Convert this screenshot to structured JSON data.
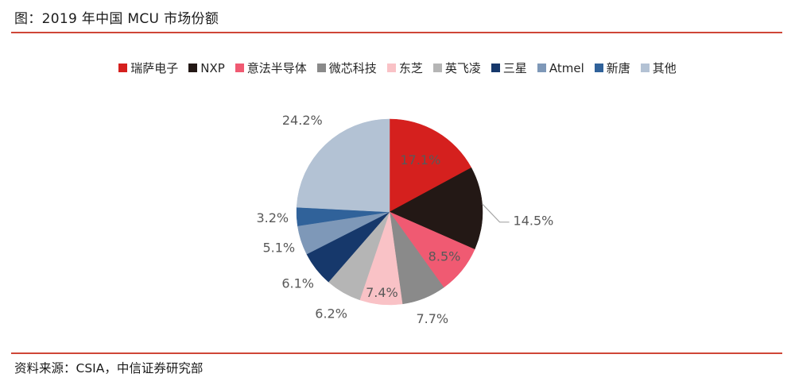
{
  "page": {
    "title": "图：2019 年中国 MCU 市场份额",
    "source": "资料来源：CSIA，中信证券研究部",
    "accent_line_color": "#CF4637",
    "background_color": "#FFFFFF"
  },
  "chart_data": {
    "type": "pie",
    "title": "2019 年中国 MCU 市场份额",
    "unit": "%",
    "start_angle_deg": 0,
    "direction": "clockwise",
    "legend_position": "top",
    "label_color": "#595959",
    "leader_line_color": "#A6A6A6",
    "slices": [
      {
        "name": "瑞萨电子",
        "value": 17.1,
        "label": "17.1%",
        "color": "#D5201E",
        "label_placement": "inside",
        "label_r": 0.65
      },
      {
        "name": "NXP",
        "value": 14.5,
        "label": "14.5%",
        "color": "#231815",
        "label_placement": "callout",
        "label_r": 1.0
      },
      {
        "name": "意法半导体",
        "value": 8.5,
        "label": "8.5%",
        "color": "#F05A72",
        "label_placement": "inside",
        "label_r": 0.76
      },
      {
        "name": "微芯科技",
        "value": 7.7,
        "label": "7.7%",
        "color": "#8A8A8A",
        "label_placement": "outside",
        "label_r": 1.24
      },
      {
        "name": "东芝",
        "value": 7.4,
        "label": "7.4%",
        "color": "#F9C2C6",
        "label_placement": "inside",
        "label_r": 0.87
      },
      {
        "name": "英飞凌",
        "value": 6.2,
        "label": "6.2%",
        "color": "#B5B5B5",
        "label_placement": "outside",
        "label_r": 1.26
      },
      {
        "name": "三星",
        "value": 6.1,
        "label": "6.1%",
        "color": "#16386B",
        "label_placement": "outside",
        "label_r": 1.25
      },
      {
        "name": "Atmel",
        "value": 5.1,
        "label": "5.1%",
        "color": "#7E98B8",
        "label_placement": "outside",
        "label_r": 1.25
      },
      {
        "name": "新唐",
        "value": 3.2,
        "label": "3.2%",
        "color": "#30629A",
        "label_placement": "outside",
        "label_r": 1.26
      },
      {
        "name": "其他",
        "value": 24.2,
        "label": "24.2%",
        "color": "#B3C2D4",
        "label_placement": "outside",
        "label_r": 1.36
      }
    ]
  }
}
